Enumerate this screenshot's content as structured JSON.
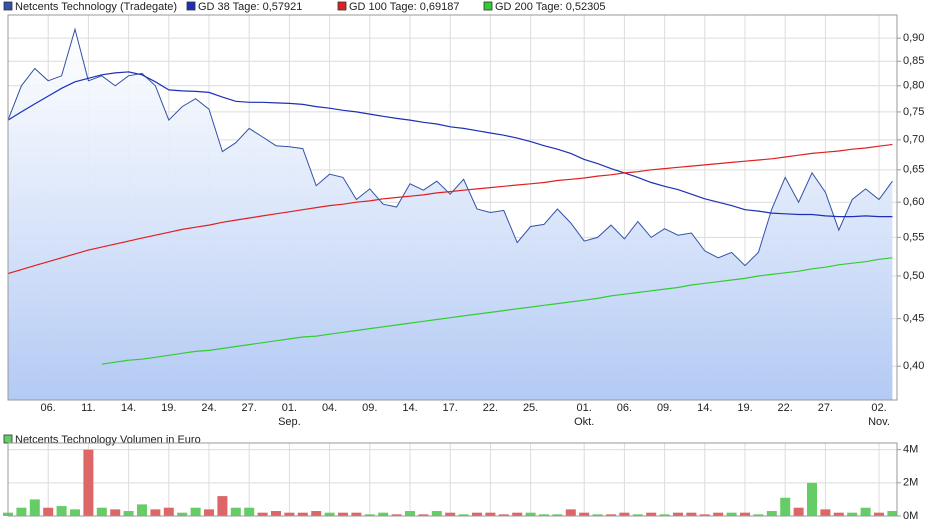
{
  "chart_data": [
    {
      "type": "line",
      "log_scale": true,
      "grid": true,
      "categories": [
        null,
        null,
        null,
        "06.",
        null,
        null,
        "11.",
        null,
        null,
        "14.",
        null,
        null,
        "19.",
        null,
        null,
        "24.",
        null,
        null,
        "27.",
        null,
        null,
        "01.",
        null,
        null,
        "04.",
        null,
        null,
        "09.",
        null,
        null,
        "14.",
        null,
        null,
        "17.",
        null,
        null,
        "22.",
        null,
        null,
        "25.",
        null,
        null,
        null,
        "01.",
        null,
        null,
        "06.",
        null,
        null,
        "09.",
        null,
        null,
        "14.",
        null,
        null,
        "19.",
        null,
        null,
        "22.",
        null,
        null,
        "27.",
        null,
        null,
        null,
        "02.",
        null
      ],
      "months": [
        null,
        null,
        null,
        null,
        null,
        null,
        null,
        null,
        null,
        null,
        null,
        null,
        null,
        null,
        null,
        null,
        null,
        null,
        null,
        null,
        null,
        "Sep.",
        null,
        null,
        null,
        null,
        null,
        null,
        null,
        null,
        null,
        null,
        null,
        null,
        null,
        null,
        null,
        null,
        null,
        null,
        null,
        null,
        null,
        "Okt.",
        null,
        null,
        null,
        null,
        null,
        null,
        null,
        null,
        null,
        null,
        null,
        null,
        null,
        null,
        null,
        null,
        null,
        null,
        null,
        null,
        null,
        "Nov.",
        null
      ],
      "ylim": [
        0.368,
        0.953
      ],
      "yticks": [
        {
          "value": 0.4,
          "label": "0,40"
        },
        {
          "value": 0.45,
          "label": "0,45"
        },
        {
          "value": 0.5,
          "label": "0,50"
        },
        {
          "value": 0.55,
          "label": "0,55"
        },
        {
          "value": 0.6,
          "label": "0,60"
        },
        {
          "value": 0.65,
          "label": "0,65"
        },
        {
          "value": 0.7,
          "label": "0,70"
        },
        {
          "value": 0.75,
          "label": "0,75"
        },
        {
          "value": 0.8,
          "label": "0,80"
        },
        {
          "value": 0.85,
          "label": "0,85"
        },
        {
          "value": 0.9,
          "label": "0,90"
        }
      ],
      "series": [
        {
          "name": "Netcents Technology (Tradegate)",
          "color": "#3352a8",
          "fill": "#b3caf4",
          "area": true,
          "values": [
            0.735,
            0.8,
            0.835,
            0.81,
            0.82,
            0.92,
            0.81,
            0.82,
            0.8,
            0.82,
            0.825,
            0.8,
            0.735,
            0.76,
            0.775,
            0.755,
            0.68,
            0.695,
            0.72,
            0.705,
            0.69,
            0.688,
            0.685,
            0.625,
            0.643,
            0.638,
            0.604,
            0.62,
            0.597,
            0.593,
            0.628,
            0.618,
            0.632,
            0.612,
            0.635,
            0.59,
            0.585,
            0.588,
            0.543,
            0.565,
            0.568,
            0.59,
            0.57,
            0.545,
            0.55,
            0.567,
            0.548,
            0.572,
            0.55,
            0.562,
            0.553,
            0.556,
            0.532,
            0.523,
            0.53,
            0.513,
            0.53,
            0.59,
            0.638,
            0.6,
            0.645,
            0.615,
            0.56,
            0.604,
            0.62,
            0.604,
            0.632
          ]
        },
        {
          "name": "GD 38 Tage: 0,57921",
          "color": "#1c2fb8",
          "values": [
            0.735,
            0.75,
            0.765,
            0.78,
            0.795,
            0.808,
            0.815,
            0.822,
            0.826,
            0.828,
            0.822,
            0.808,
            0.792,
            0.79,
            0.789,
            0.787,
            0.778,
            0.77,
            0.768,
            0.768,
            0.767,
            0.766,
            0.764,
            0.76,
            0.757,
            0.753,
            0.75,
            0.746,
            0.742,
            0.738,
            0.735,
            0.731,
            0.728,
            0.723,
            0.72,
            0.716,
            0.712,
            0.708,
            0.703,
            0.697,
            0.69,
            0.684,
            0.677,
            0.667,
            0.66,
            0.652,
            0.645,
            0.638,
            0.63,
            0.624,
            0.619,
            0.612,
            0.605,
            0.6,
            0.595,
            0.589,
            0.587,
            0.584,
            0.583,
            0.582,
            0.582,
            0.58,
            0.579,
            0.579,
            0.58,
            0.579,
            0.579
          ]
        },
        {
          "name": "GD 100 Tage: 0,69187",
          "color": "#e02020",
          "values": [
            0.503,
            0.508,
            0.513,
            0.518,
            0.523,
            0.528,
            0.533,
            0.537,
            0.541,
            0.545,
            0.549,
            0.553,
            0.557,
            0.561,
            0.564,
            0.567,
            0.571,
            0.574,
            0.577,
            0.58,
            0.583,
            0.586,
            0.589,
            0.592,
            0.595,
            0.597,
            0.6,
            0.602,
            0.605,
            0.607,
            0.609,
            0.611,
            0.614,
            0.616,
            0.618,
            0.62,
            0.622,
            0.624,
            0.626,
            0.628,
            0.63,
            0.633,
            0.635,
            0.637,
            0.64,
            0.642,
            0.645,
            0.647,
            0.65,
            0.652,
            0.654,
            0.656,
            0.658,
            0.66,
            0.662,
            0.664,
            0.666,
            0.668,
            0.671,
            0.674,
            0.677,
            0.679,
            0.681,
            0.684,
            0.686,
            0.689,
            0.692
          ]
        },
        {
          "name": "GD 200 Tage: 0,52305",
          "color": "#33cc33",
          "values": [
            null,
            null,
            null,
            null,
            null,
            null,
            null,
            0.402,
            0.404,
            0.406,
            0.407,
            0.409,
            0.411,
            0.413,
            0.415,
            0.416,
            0.418,
            0.42,
            0.422,
            0.424,
            0.426,
            0.428,
            0.43,
            0.431,
            0.433,
            0.435,
            0.437,
            0.439,
            0.441,
            0.443,
            0.445,
            0.447,
            0.449,
            0.451,
            0.453,
            0.455,
            0.457,
            0.459,
            0.461,
            0.463,
            0.465,
            0.467,
            0.469,
            0.471,
            0.473,
            0.476,
            0.478,
            0.48,
            0.482,
            0.484,
            0.486,
            0.489,
            0.491,
            0.493,
            0.495,
            0.497,
            0.5,
            0.502,
            0.504,
            0.506,
            0.509,
            0.511,
            0.514,
            0.516,
            0.518,
            0.521,
            0.523
          ]
        }
      ]
    },
    {
      "type": "bar",
      "grid": true,
      "series": [
        {
          "name": "Netcents Technology Volumen in Euro",
          "color": "#66cc66",
          "values": [
            200000,
            500000,
            1000000,
            500000,
            600000,
            400000,
            4000000,
            500000,
            400000,
            300000,
            700000,
            400000,
            500000,
            200000,
            500000,
            400000,
            1200000,
            500000,
            500000,
            200000,
            300000,
            200000,
            200000,
            300000,
            200000,
            200000,
            200000,
            100000,
            200000,
            100000,
            300000,
            100000,
            300000,
            200000,
            100000,
            200000,
            200000,
            100000,
            200000,
            200000,
            100000,
            100000,
            400000,
            200000,
            100000,
            100000,
            200000,
            100000,
            200000,
            100000,
            200000,
            200000,
            100000,
            200000,
            200000,
            200000,
            100000,
            300000,
            1100000,
            500000,
            2000000,
            400000,
            200000,
            200000,
            500000,
            200000,
            300000
          ],
          "colors": [
            "#66cc66",
            "#66cc66",
            "#66cc66",
            "#dd6666",
            "#66cc66",
            "#66cc66",
            "#dd6666",
            "#66cc66",
            "#dd6666",
            "#66cc66",
            "#66cc66",
            "#dd6666",
            "#dd6666",
            "#66cc66",
            "#66cc66",
            "#dd6666",
            "#dd6666",
            "#66cc66",
            "#66cc66",
            "#dd6666",
            "#dd6666",
            "#dd6666",
            "#dd6666",
            "#dd6666",
            "#66cc66",
            "#dd6666",
            "#dd6666",
            "#66cc66",
            "#66cc66",
            "#dd6666",
            "#66cc66",
            "#dd6666",
            "#66cc66",
            "#dd6666",
            "#66cc66",
            "#dd6666",
            "#dd6666",
            "#dd6666",
            "#dd6666",
            "#66cc66",
            "#66cc66",
            "#66cc66",
            "#dd6666",
            "#dd6666",
            "#66cc66",
            "#dd6666",
            "#dd6666",
            "#66cc66",
            "#dd6666",
            "#66cc66",
            "#dd6666",
            "#dd6666",
            "#dd6666",
            "#dd6666",
            "#66cc66",
            "#dd6666",
            "#66cc66",
            "#66cc66",
            "#66cc66",
            "#dd6666",
            "#66cc66",
            "#dd6666",
            "#dd6666",
            "#66cc66",
            "#66cc66",
            "#dd6666",
            "#66cc66"
          ]
        }
      ],
      "ylim": [
        0,
        4400000
      ],
      "yticks": [
        {
          "value": 0,
          "label": "0M"
        },
        {
          "value": 2000000,
          "label": "2M"
        },
        {
          "value": 4000000,
          "label": "4M"
        }
      ]
    }
  ]
}
